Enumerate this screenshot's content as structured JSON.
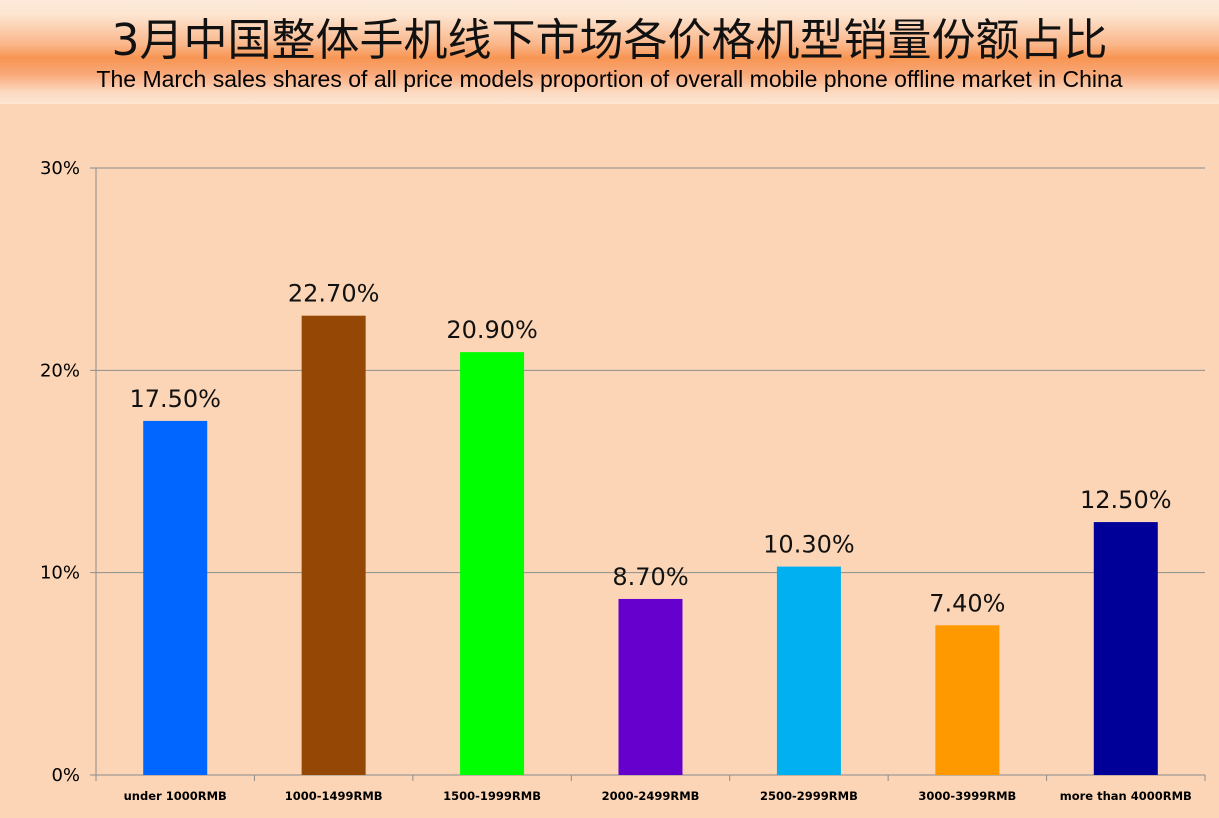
{
  "header": {
    "title_cn": "3月中国整体手机线下市场各价格机型销量份额占比",
    "title_en": "The March sales shares of all price models proportion of overall mobile phone offline market in China"
  },
  "colors": {
    "background": "#FBD5B5",
    "gridline": "#8C8C8C"
  },
  "chart_data": {
    "type": "bar",
    "title": "3月中国整体手机线下市场各价格机型销量份额占比",
    "subtitle": "The March sales shares of all price models proportion of overall mobile phone offline market in China",
    "categories": [
      "under 1000RMB",
      "1000-1499RMB",
      "1500-1999RMB",
      "2000-2499RMB",
      "2500-2999RMB",
      "3000-3999RMB",
      "more than 4000RMB"
    ],
    "values": [
      17.5,
      22.7,
      20.9,
      8.7,
      10.3,
      7.4,
      12.5
    ],
    "data_labels": [
      "17.50%",
      "22.70%",
      "20.90%",
      "8.70%",
      "10.30%",
      "7.40%",
      "12.50%"
    ],
    "bar_colors": [
      "#0066FF",
      "#954706",
      "#00FF00",
      "#6600CC",
      "#00B0F0",
      "#FF9900",
      "#000099"
    ],
    "ylim": [
      0,
      30
    ],
    "yticks": [
      0,
      10,
      20,
      30
    ],
    "ytick_labels": [
      "0%",
      "10%",
      "20%",
      "30%"
    ],
    "xlabel": "",
    "ylabel": "",
    "grid": true,
    "legend": "none"
  }
}
